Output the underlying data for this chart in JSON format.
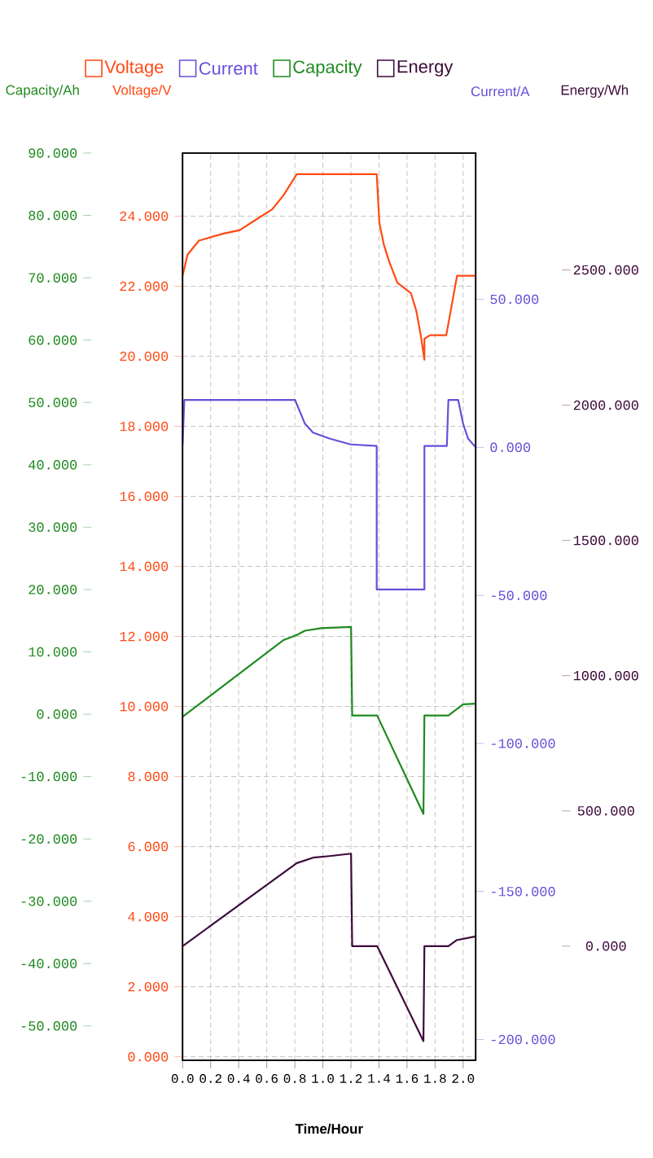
{
  "chart_data": [
    {
      "type": "line",
      "xlabel": "Time/Hour",
      "ylabel": "Voltage/V",
      "y2label": "Current/A",
      "y3label": "Capacity/Ah",
      "xlim": [
        0,
        2.09
      ],
      "xticks": [
        {
          "value": 0,
          "label": "0.0"
        },
        {
          "value": 0.2,
          "label": "0.2"
        },
        {
          "value": 0.4,
          "label": "0.4"
        },
        {
          "value": 0.6,
          "label": "0.6"
        },
        {
          "value": 0.8,
          "label": "0.8"
        },
        {
          "value": 1.0,
          "label": "1.0"
        },
        {
          "value": 1.2,
          "label": "1.2"
        },
        {
          "value": 1.4,
          "label": "1.4"
        },
        {
          "value": 1.6,
          "label": "1.6"
        },
        {
          "value": 1.8,
          "label": "1.8"
        },
        {
          "value": 2.0,
          "label": "2.0"
        }
      ],
      "ylim": [
        -0.1,
        25.8
      ],
      "yticks": [
        {
          "value": 0,
          "label": "0.000"
        },
        {
          "value": 2,
          "label": "2.000"
        },
        {
          "value": 4,
          "label": "4.000"
        },
        {
          "value": 6,
          "label": "6.000"
        },
        {
          "value": 8,
          "label": "8.000"
        },
        {
          "value": 10,
          "label": "10.000"
        },
        {
          "value": 12,
          "label": "12.000"
        },
        {
          "value": 14,
          "label": "14.000"
        },
        {
          "value": 16,
          "label": "16.000"
        },
        {
          "value": 18,
          "label": "18.000"
        },
        {
          "value": 20,
          "label": "20.000"
        },
        {
          "value": 22,
          "label": "22.000"
        },
        {
          "value": 24,
          "label": "24.000"
        }
      ],
      "y2lim": [
        -207,
        99.4
      ],
      "y2ticks": [
        {
          "value": -200,
          "label": "-200.000"
        },
        {
          "value": -150,
          "label": "-150.000"
        },
        {
          "value": -100,
          "label": "-100.000"
        },
        {
          "value": -50,
          "label": "-50.000"
        },
        {
          "value": 0,
          "label": "0.000"
        },
        {
          "value": 50,
          "label": "50.000"
        }
      ],
      "y3lim": [
        -55.5,
        90
      ],
      "y3ticks": [
        {
          "value": -50,
          "label": "-50.000"
        },
        {
          "value": -40,
          "label": "-40.000"
        },
        {
          "value": -30,
          "label": "-30.000"
        },
        {
          "value": -20,
          "label": "-20.000"
        },
        {
          "value": -10,
          "label": "-10.000"
        },
        {
          "value": 0,
          "label": "0.000"
        },
        {
          "value": 10,
          "label": "10.000"
        },
        {
          "value": 20,
          "label": "20.000"
        },
        {
          "value": 30,
          "label": "30.000"
        },
        {
          "value": 40,
          "label": "40.000"
        },
        {
          "value": 50,
          "label": "50.000"
        },
        {
          "value": 60,
          "label": "60.000"
        },
        {
          "value": 70,
          "label": "70.000"
        },
        {
          "value": 80,
          "label": "80.000"
        },
        {
          "value": 90,
          "label": "90.000"
        }
      ],
      "grid": true,
      "legend": "top",
      "series": [
        {
          "name": "Voltage",
          "color": "#ff4a14",
          "x": [
            0,
            0.035,
            0.116,
            0.29,
            0.407,
            0.523,
            0.64,
            0.72,
            0.814,
            1.384,
            1.403,
            1.434,
            1.473,
            1.531,
            1.628,
            1.666,
            1.698,
            1.724,
            1.724,
            1.764,
            1.88,
            1.907,
            1.957,
            1.977,
            2.09
          ],
          "values": [
            22.3,
            22.9,
            23.3,
            23.5,
            23.6,
            23.9,
            24.2,
            24.6,
            25.2,
            25.2,
            23.8,
            23.2,
            22.7,
            22.1,
            21.8,
            21.3,
            20.6,
            19.9,
            20.5,
            20.6,
            20.6,
            21.2,
            22.3,
            22.3,
            22.3
          ]
        },
        {
          "name": "Current",
          "color": "#6a4fd8",
          "axis": "y2",
          "x": [
            0,
            0.012,
            0.802,
            0.872,
            0.93,
            1.047,
            1.198,
            1.384,
            1.384,
            1.724,
            1.724,
            1.884,
            1.895,
            1.965,
            2.0,
            2.035,
            2.09
          ],
          "values": [
            1,
            16,
            16,
            8,
            5,
            3,
            1,
            0.5,
            -48,
            -48,
            0.5,
            0.5,
            16,
            16,
            8,
            3,
            0
          ]
        },
        {
          "name": "Capacity",
          "color": "#1f8a1f",
          "axis": "y3",
          "x": [
            0,
            0.72,
            0.814,
            0.872,
            0.988,
            1.201,
            1.209,
            1.387,
            1.717,
            1.724,
            1.895,
            2.0,
            2.09
          ],
          "values": [
            -0.4,
            11.9,
            12.7,
            13.4,
            13.8,
            14.0,
            -0.2,
            -0.2,
            -16.0,
            -0.2,
            -0.2,
            1.6,
            1.7
          ]
        }
      ]
    },
    {
      "type": "line",
      "ylabel": "Energy/Wh",
      "tick_labels": "y",
      "legend": "top",
      "xlim": [
        0,
        2.09
      ],
      "ylim": [
        -422,
        2932
      ],
      "yticks": [
        {
          "value": 0,
          "label": "0.000"
        },
        {
          "value": 500,
          "label": "500.000"
        },
        {
          "value": 1000,
          "label": "1000.000"
        },
        {
          "value": 1500,
          "label": "1500.000"
        },
        {
          "value": 2000,
          "label": "2000.000"
        },
        {
          "value": 2500,
          "label": "2500.000"
        }
      ],
      "series": [
        {
          "name": "Energy",
          "color": "#3d0a3a",
          "x": [
            0,
            0.814,
            0.93,
            1.047,
            1.201,
            1.209,
            1.387,
            1.717,
            1.724,
            1.895,
            1.953,
            2.09
          ],
          "values": [
            0,
            307,
            327,
            333,
            342,
            0,
            0,
            -351,
            0,
            0,
            22,
            36
          ]
        }
      ]
    }
  ]
}
